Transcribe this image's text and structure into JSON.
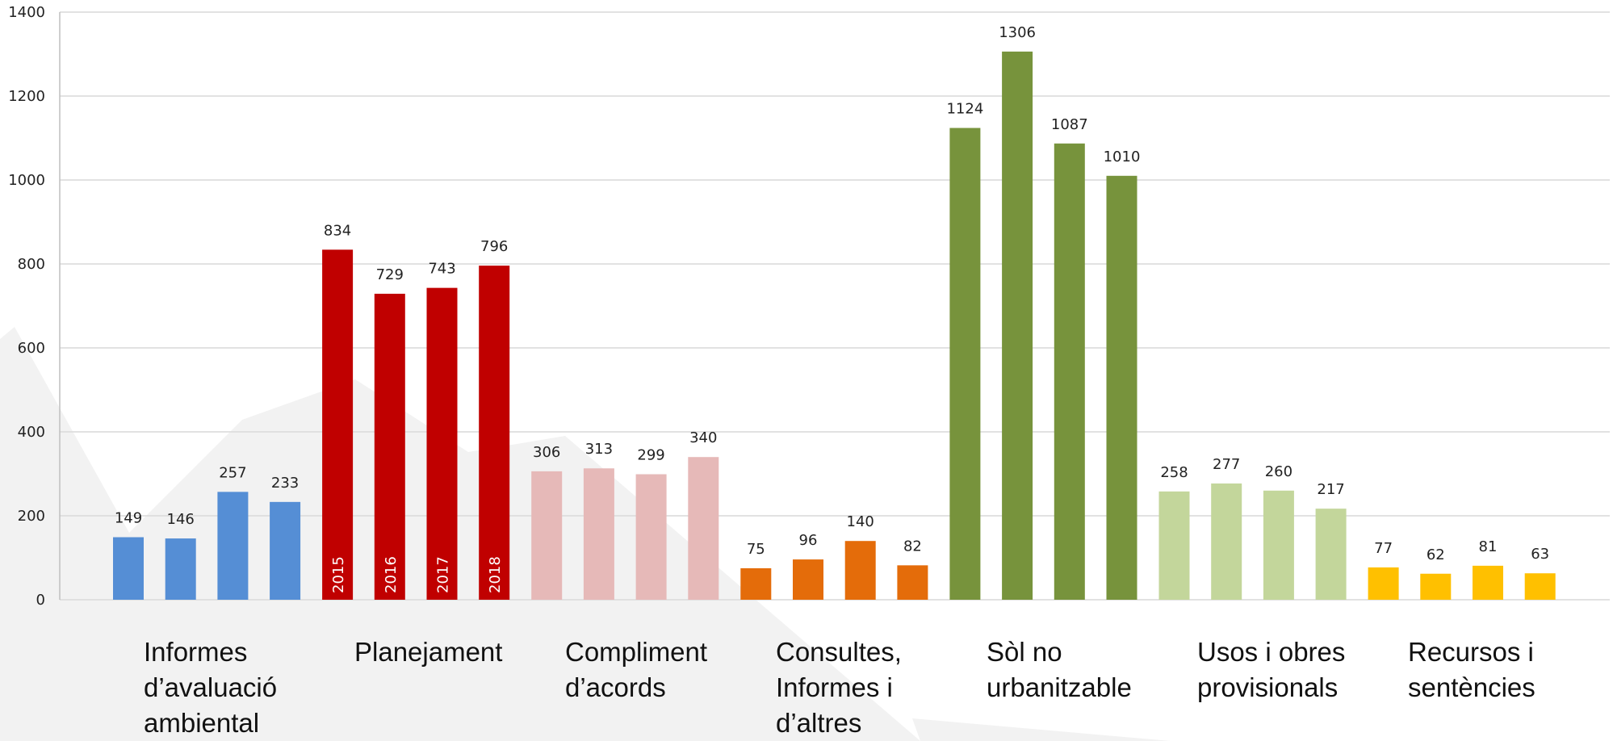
{
  "chart_data": {
    "type": "bar",
    "categories": [
      "Informes d’avaluació ambiental",
      "Planejament",
      "Compliment d’acords",
      "Consultes, Informes i d’altres",
      "Sòl no urbanitzable",
      "Usos i obres provisionals",
      "Recursos i sentències"
    ],
    "category_colors": [
      "#558ed5",
      "#c00000",
      "#e6b9b8",
      "#e46c0a",
      "#77933c",
      "#c3d69b",
      "#ffc000"
    ],
    "series": [
      {
        "name": "2015",
        "values": [
          149,
          834,
          306,
          75,
          1124,
          258,
          77
        ]
      },
      {
        "name": "2016",
        "values": [
          146,
          729,
          313,
          96,
          1306,
          277,
          62
        ]
      },
      {
        "name": "2017",
        "values": [
          257,
          743,
          299,
          140,
          1087,
          260,
          81
        ]
      },
      {
        "name": "2018",
        "values": [
          233,
          796,
          340,
          82,
          1010,
          217,
          63
        ]
      }
    ],
    "ylim": [
      0,
      1400
    ],
    "yticks": [
      0,
      200,
      400,
      600,
      800,
      1000,
      1200,
      1400
    ],
    "grid": true
  }
}
